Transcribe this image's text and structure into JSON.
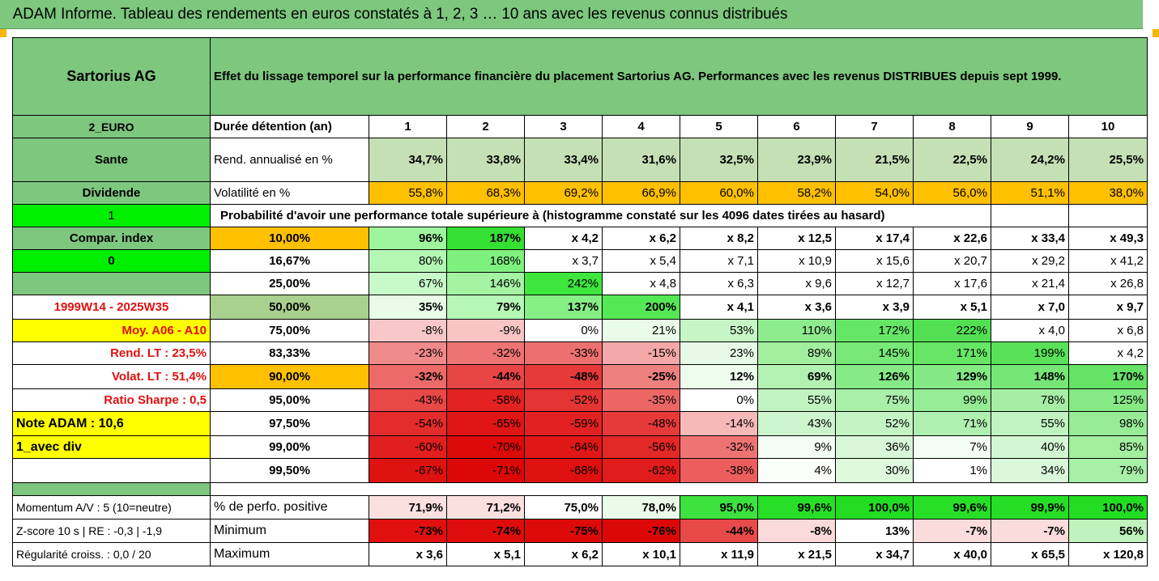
{
  "banner": "ADAM Informe. Tableau des rendements en euros constatés à 1, 2, 3 … 10 ans avec les revenus connus distribués",
  "title": {
    "name": "Sartorius AG",
    "description": "Effet du lissage temporel sur la performance financière du placement Sartorius AG. Performances avec les revenus DISTRIBUES depuis sept 1999."
  },
  "side": {
    "currency": "2_EURO",
    "sector": "Sante",
    "dividend": "Dividende",
    "flag1": "1",
    "compar": "Compar. index",
    "flag0": "0",
    "period": "1999W14 - 2025W35",
    "moy": "Moy. A06 - A10",
    "rend_lt": "Rend. LT :   23,5%",
    "volat_lt": "Volat. LT :   51,4%",
    "sharpe": "Ratio Sharpe :    0,5",
    "note": "Note ADAM : 10,6",
    "avec_div": "1_avec div",
    "momentum": "Momentum A/V : 5 (10=neutre)",
    "zscore": "Z-score 10 s  |  RE : -0,3  |  -1,9",
    "regularite": "Régularité croiss. : 0,0 / 20"
  },
  "header_row": {
    "label": "Durée détention (an)",
    "years": [
      "1",
      "2",
      "3",
      "4",
      "5",
      "6",
      "7",
      "8",
      "9",
      "10"
    ]
  },
  "rend_row": {
    "label": "Rend. annualisé en %",
    "values": [
      "34,7%",
      "33,8%",
      "33,4%",
      "31,6%",
      "32,5%",
      "23,9%",
      "21,5%",
      "22,5%",
      "24,2%",
      "25,5%"
    ]
  },
  "vol_row": {
    "label": "Volatilité en %",
    "values": [
      "55,8%",
      "68,3%",
      "69,2%",
      "66,9%",
      "60,0%",
      "58,2%",
      "54,0%",
      "56,0%",
      "51,1%",
      "38,0%"
    ]
  },
  "proba_title": "Probabilité d'avoir une performance totale supérieure à (histogramme constaté sur les 4096 dates tirées au hasard)",
  "percentiles": [
    {
      "p": "10,00%",
      "values": [
        "96%",
        "187%",
        "x 4,2",
        "x 6,2",
        "x 8,2",
        "x 12,5",
        "x 17,4",
        "x 22,6",
        "x 33,4",
        "x 49,3"
      ],
      "bg": [
        "#9ef59e",
        "#33e033",
        "#ffffff",
        "#ffffff",
        "#ffffff",
        "#ffffff",
        "#ffffff",
        "#ffffff",
        "#ffffff",
        "#ffffff"
      ]
    },
    {
      "p": "16,67%",
      "values": [
        "80%",
        "168%",
        "x 3,7",
        "x 5,4",
        "x 7,1",
        "x 10,9",
        "x 15,6",
        "x 20,7",
        "x 29,2",
        "x 41,2"
      ],
      "bg": [
        "#b4f7b4",
        "#7ef07e",
        "#ffffff",
        "#ffffff",
        "#ffffff",
        "#ffffff",
        "#ffffff",
        "#ffffff",
        "#ffffff",
        "#ffffff"
      ]
    },
    {
      "p": "25,00%",
      "values": [
        "67%",
        "146%",
        "242%",
        "x 4,8",
        "x 6,3",
        "x 9,6",
        "x 12,7",
        "x 17,6",
        "x 21,4",
        "x 26,8"
      ],
      "bg": [
        "#c8f9c8",
        "#a3f3a3",
        "#3ee63e",
        "#ffffff",
        "#ffffff",
        "#ffffff",
        "#ffffff",
        "#ffffff",
        "#ffffff",
        "#ffffff"
      ]
    },
    {
      "p": "50,00%",
      "values": [
        "35%",
        "79%",
        "137%",
        "200%",
        "x 4,1",
        "x 3,6",
        "x 3,9",
        "x 5,1",
        "x 7,0",
        "x 9,7"
      ],
      "bg": [
        "#e8fce8",
        "#b6f6b6",
        "#86ef86",
        "#55e855",
        "#ffffff",
        "#ffffff",
        "#ffffff",
        "#ffffff",
        "#ffffff",
        "#ffffff"
      ]
    },
    {
      "p": "75,00%",
      "values": [
        "-8%",
        "-9%",
        "0%",
        "21%",
        "53%",
        "110%",
        "172%",
        "222%",
        "x 4,0",
        "x 6,8"
      ],
      "bg": [
        "#f8c8c8",
        "#f8c4c4",
        "#ffffff",
        "#e9fbe9",
        "#c6f6c6",
        "#8eec8e",
        "#66e666",
        "#52e052",
        "#ffffff",
        "#ffffff"
      ]
    },
    {
      "p": "83,33%",
      "values": [
        "-23%",
        "-32%",
        "-33%",
        "-15%",
        "23%",
        "89%",
        "145%",
        "171%",
        "199%",
        "x 4,2"
      ],
      "bg": [
        "#f08a8a",
        "#ee7474",
        "#ed7070",
        "#f5a8a8",
        "#e7fae7",
        "#a3ef9f",
        "#78e878",
        "#66e566",
        "#59e259",
        "#ffffff"
      ]
    },
    {
      "p": "90,00%",
      "values": [
        "-32%",
        "-44%",
        "-48%",
        "-25%",
        "12%",
        "69%",
        "126%",
        "129%",
        "148%",
        "170%"
      ],
      "bg": [
        "#ec6a6a",
        "#e84646",
        "#e63a3a",
        "#ef8080",
        "#eefcee",
        "#b2f1b2",
        "#86ea86",
        "#84e984",
        "#76e676",
        "#66e366"
      ]
    },
    {
      "p": "95,00%",
      "values": [
        "-43%",
        "-58%",
        "-52%",
        "-35%",
        "0%",
        "55%",
        "75%",
        "99%",
        "78%",
        "125%"
      ],
      "bg": [
        "#e84848",
        "#e32222",
        "#e53434",
        "#ec6666",
        "#ffffff",
        "#c0f3c0",
        "#a9efa9",
        "#96ec96",
        "#a6eea6",
        "#86e986"
      ]
    },
    {
      "p": "97,50%",
      "values": [
        "-54%",
        "-65%",
        "-59%",
        "-48%",
        "-14%",
        "43%",
        "52%",
        "71%",
        "55%",
        "98%"
      ],
      "bg": [
        "#e42c2c",
        "#e01515",
        "#e22222",
        "#e63a3a",
        "#f7b8b8",
        "#cdf5cd",
        "#c4f4c4",
        "#afefaf",
        "#c0f3c0",
        "#98ec98"
      ]
    },
    {
      "p": "99,00%",
      "values": [
        "-60%",
        "-70%",
        "-64%",
        "-56%",
        "-32%",
        "9%",
        "36%",
        "7%",
        "40%",
        "85%"
      ],
      "bg": [
        "#e21f1f",
        "#dd0a0a",
        "#e01717",
        "#e32828",
        "#ee7474",
        "#f3fdf3",
        "#d8f7d8",
        "#f4fdf4",
        "#d3f6d3",
        "#a3ee9f"
      ]
    },
    {
      "p": "99,50%",
      "values": [
        "-67%",
        "-71%",
        "-68%",
        "-62%",
        "-38%",
        "4%",
        "30%",
        "1%",
        "34%",
        "79%"
      ],
      "bg": [
        "#df1212",
        "#dc0808",
        "#de1010",
        "#e11c1c",
        "#ec5e5e",
        "#f9fef9",
        "#def8de",
        "#fefffe",
        "#d9f7d9",
        "#a8efa8"
      ]
    }
  ],
  "positive_row": {
    "label": "% de perfo. positive",
    "values": [
      "71,9%",
      "71,2%",
      "75,0%",
      "78,0%",
      "95,0%",
      "99,6%",
      "100,0%",
      "99,6%",
      "99,9%",
      "100,0%"
    ],
    "bg": [
      "#fbe0e0",
      "#fbe0e0",
      "#ffffff",
      "#ebfbea",
      "#3ee23e",
      "#28df28",
      "#22dd22",
      "#28df28",
      "#26de26",
      "#22dd22"
    ]
  },
  "min_row": {
    "label": "Minimum",
    "values": [
      "-73%",
      "-74%",
      "-75%",
      "-76%",
      "-44%",
      "-8%",
      "13%",
      "-7%",
      "-7%",
      "56%"
    ],
    "bg": [
      "#e01010",
      "#de0c0c",
      "#dd0a0a",
      "#dc0808",
      "#e84a4a",
      "#fadada",
      "#ffffff",
      "#fbdcdc",
      "#fbdcdc",
      "#c0f2bd"
    ]
  },
  "max_row": {
    "label": "Maximum",
    "values": [
      "x 3,6",
      "x 5,1",
      "x 6,2",
      "x 10,1",
      "x 11,9",
      "x 21,5",
      "x 34,7",
      "x 40,0",
      "x 65,5",
      "x 120,8"
    ]
  }
}
